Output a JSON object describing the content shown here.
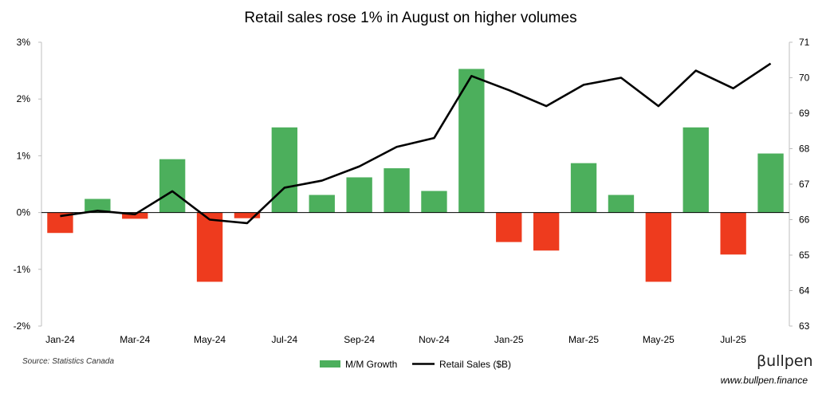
{
  "chart_data": {
    "type": "bar",
    "title": "Retail sales rose 1% in August on higher volumes",
    "categories": [
      "Jan-24",
      "Feb-24",
      "Mar-24",
      "Apr-24",
      "May-24",
      "Jun-24",
      "Jul-24",
      "Aug-24",
      "Sep-24",
      "Oct-24",
      "Nov-24",
      "Dec-24",
      "Jan-25",
      "Feb-25",
      "Mar-25",
      "Apr-25",
      "May-25",
      "Jun-25",
      "Jul-25",
      "Aug-25"
    ],
    "x_tick_labels": [
      "Jan-24",
      "Mar-24",
      "May-24",
      "Jul-24",
      "Sep-24",
      "Nov-24",
      "Jan-25",
      "Mar-25",
      "May-25",
      "Jul-25"
    ],
    "series": [
      {
        "name": "M/M Growth",
        "kind": "bar",
        "axis": "left",
        "values": [
          -0.36,
          0.24,
          -0.11,
          0.94,
          -1.22,
          -0.1,
          1.5,
          0.31,
          0.62,
          0.78,
          0.38,
          2.53,
          -0.52,
          -0.67,
          0.87,
          0.31,
          -1.22,
          1.5,
          -0.74,
          1.04
        ],
        "positive_color": "#4caf5c",
        "negative_color": "#ee3b1e"
      },
      {
        "name": "Retail Sales ($B)",
        "kind": "line",
        "axis": "right",
        "values": [
          66.1,
          66.25,
          66.15,
          66.8,
          66.0,
          65.9,
          66.9,
          67.1,
          67.5,
          68.05,
          68.3,
          70.05,
          69.65,
          69.2,
          69.8,
          70.0,
          69.2,
          70.2,
          69.7,
          70.4
        ],
        "color": "#000000"
      }
    ],
    "y_left": {
      "ylim": [
        -2,
        3
      ],
      "ticks": [
        "-2%",
        "-1%",
        "0%",
        "1%",
        "2%",
        "3%"
      ]
    },
    "y_right": {
      "ylim": [
        63,
        71
      ],
      "ticks": [
        "63",
        "64",
        "65",
        "66",
        "67",
        "68",
        "69",
        "70",
        "71"
      ]
    },
    "grid": false,
    "legend": {
      "placement": "bottom-center",
      "items": [
        "M/M Growth",
        "Retail Sales ($B)"
      ]
    }
  },
  "footer": {
    "source": "Source: Statistics Canada",
    "brand": "βullpen",
    "website": "www.bullpen.finance"
  }
}
